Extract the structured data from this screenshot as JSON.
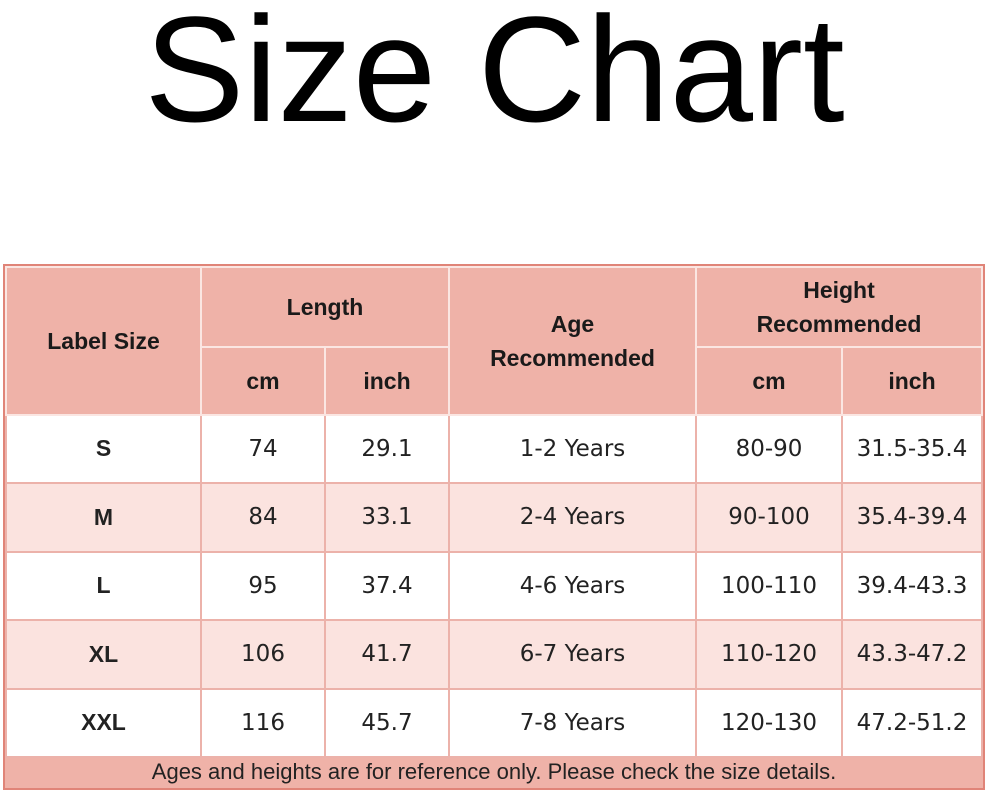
{
  "title": "Size Chart",
  "table": {
    "headers": {
      "label_size": "Label Size",
      "length": "Length",
      "age": "Age Recommended",
      "height": "Height Recommended",
      "length_cm": "cm",
      "length_inch": "inch",
      "height_cm": "cm",
      "height_inch": "inch"
    },
    "rows": [
      {
        "size": "S",
        "length_cm": "74",
        "length_inch": "29.1",
        "age": "1-2 Years",
        "height_cm": "80-90",
        "height_inch": "31.5-35.4"
      },
      {
        "size": "M",
        "length_cm": "84",
        "length_inch": "33.1",
        "age": "2-4 Years",
        "height_cm": "90-100",
        "height_inch": "35.4-39.4"
      },
      {
        "size": "L",
        "length_cm": "95",
        "length_inch": "37.4",
        "age": "4-6 Years",
        "height_cm": "100-110",
        "height_inch": "39.4-43.3"
      },
      {
        "size": "XL",
        "length_cm": "106",
        "length_inch": "41.7",
        "age": "6-7 Years",
        "height_cm": "110-120",
        "height_inch": "43.3-47.2"
      },
      {
        "size": "XXL",
        "length_cm": "116",
        "length_inch": "45.7",
        "age": "7-8 Years",
        "height_cm": "120-130",
        "height_inch": "47.2-51.2"
      }
    ],
    "footer": "Ages and heights are for reference only. Please check the size details."
  },
  "colors": {
    "header": "#efb2a8",
    "alt_row": "#fbe3df",
    "border": "#e08478"
  }
}
